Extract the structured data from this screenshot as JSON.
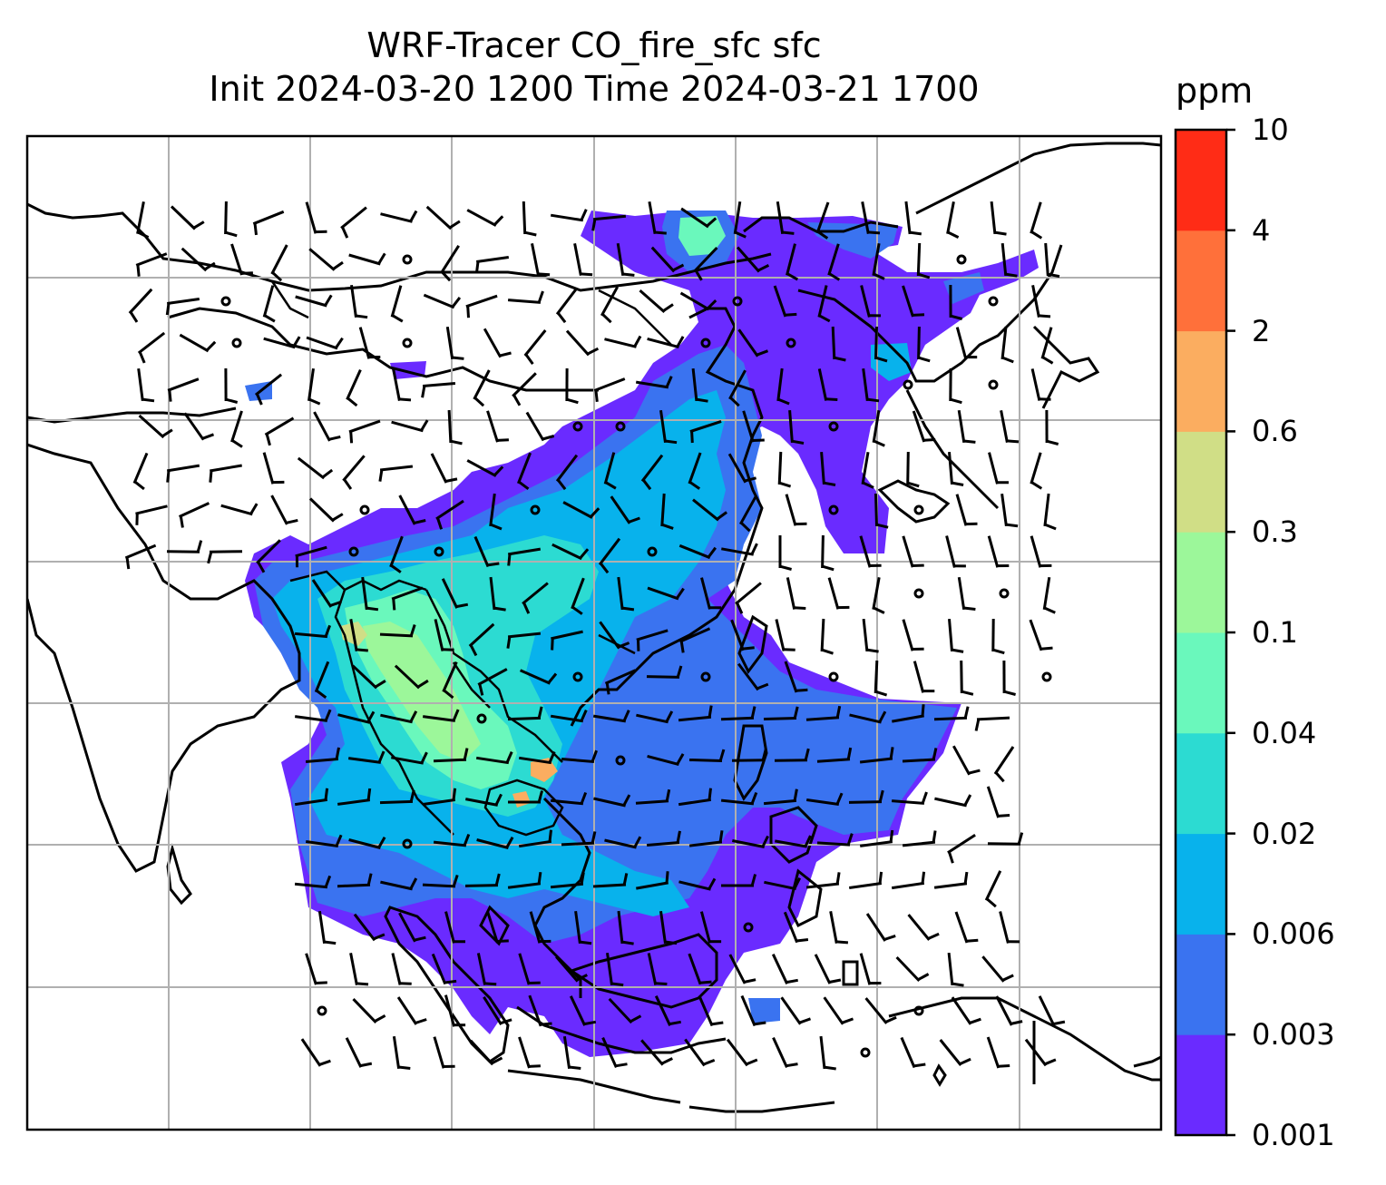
{
  "title": {
    "line1": "WRF-Tracer CO_fire_sfc sfc",
    "line2": "Init 2024-03-20 1200 Time 2024-03-21 1700"
  },
  "colorbar": {
    "unit": "ppm",
    "levels": [
      "0.001",
      "0.003",
      "0.006",
      "0.02",
      "0.04",
      "0.1",
      "0.3",
      "0.6",
      "2",
      "4",
      "10"
    ],
    "colors": [
      "#6a2bff",
      "#3a73f0",
      "#08b2ec",
      "#2cdbd2",
      "#6af8bc",
      "#9cf79a",
      "#d0de86",
      "#fbad60",
      "#ff703a",
      "#ff2c16"
    ]
  },
  "map": {
    "region": "Southeast Asia / South China Sea",
    "gridlines": true,
    "wind_barbs": true,
    "coastlines": true,
    "country_borders": true
  }
}
